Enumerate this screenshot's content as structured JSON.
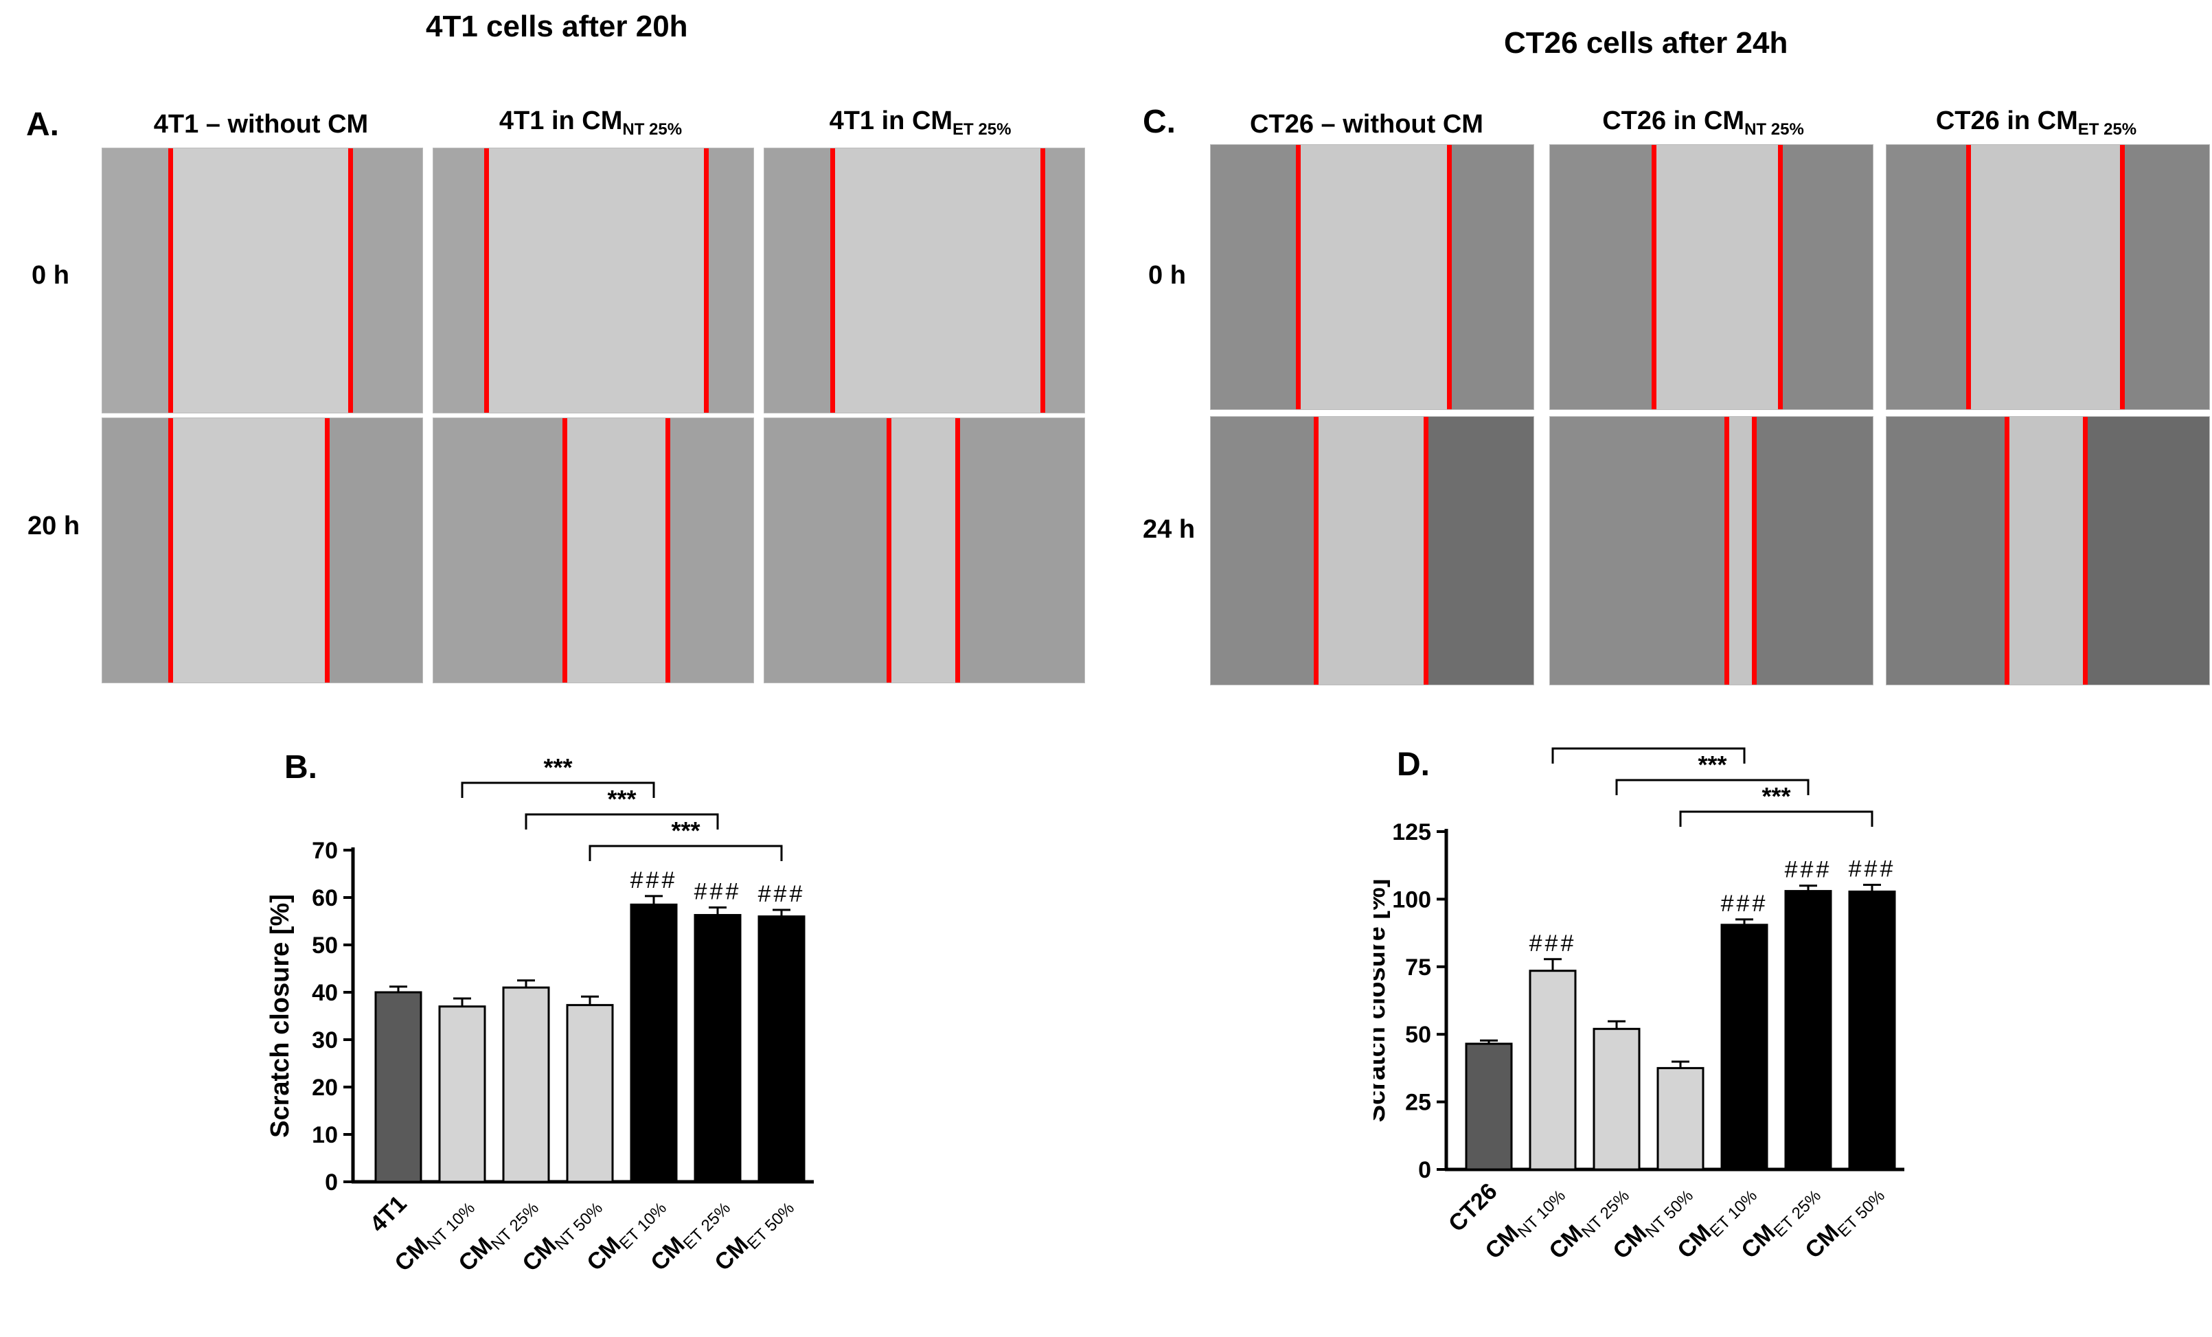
{
  "titles": {
    "left": "4T1 cells after 20h",
    "right": "CT26 cells after 24h"
  },
  "panels": {
    "A": "A.",
    "B": "B.",
    "C": "C.",
    "D": "D."
  },
  "micrographs_left": {
    "columns": [
      {
        "main": "4T1 – without CM",
        "sub": ""
      },
      {
        "main": "4T1 in CM",
        "sub": "NT 25%"
      },
      {
        "main": "4T1 in CM",
        "sub": "ET 25%"
      }
    ],
    "rows": [
      "0 h",
      "20 h"
    ]
  },
  "micrographs_right": {
    "columns": [
      {
        "main": "CT26 – without CM",
        "sub": ""
      },
      {
        "main": "CT26 in CM",
        "sub": "NT 25%"
      },
      {
        "main": "CT26 in CM",
        "sub": "ET 25%"
      }
    ],
    "rows": [
      "0 h",
      "24 h"
    ]
  },
  "colors": {
    "dark_gray": "#5a5a5a",
    "light_gray": "#d4d4d4",
    "black": "#000000",
    "scratch_line": "#ff0000"
  },
  "chart_data": [
    {
      "type": "bar",
      "ylabel": "Scratch closure [%]",
      "ylim": [
        0,
        70
      ],
      "yticks": [
        0,
        10,
        20,
        30,
        40,
        50,
        60,
        70
      ],
      "categories": [
        {
          "base": "4T1",
          "sub": ""
        },
        {
          "base": "CM",
          "sub": "NT 10%"
        },
        {
          "base": "CM",
          "sub": "NT 25%"
        },
        {
          "base": "CM",
          "sub": "NT 50%"
        },
        {
          "base": "CM",
          "sub": "ET 10%"
        },
        {
          "base": "CM",
          "sub": "ET 25%"
        },
        {
          "base": "CM",
          "sub": "ET 50%"
        }
      ],
      "values": [
        40,
        37,
        41,
        37.3,
        58.5,
        56.3,
        56
      ],
      "errors": [
        1.2,
        1.7,
        1.5,
        1.8,
        1.8,
        1.6,
        1.4
      ],
      "bar_colors": [
        "dark",
        "light",
        "light",
        "light",
        "black",
        "black",
        "black"
      ],
      "annotations": [
        "",
        "",
        "",
        "",
        "###",
        "###",
        "###"
      ],
      "significance": [
        {
          "from": 1,
          "to": 4,
          "label": "***"
        },
        {
          "from": 2,
          "to": 5,
          "label": "***"
        },
        {
          "from": 3,
          "to": 6,
          "label": "***"
        }
      ]
    },
    {
      "type": "bar",
      "ylabel": "Scratch closure [%]",
      "ylim": [
        0,
        125
      ],
      "yticks": [
        0,
        25,
        50,
        75,
        100,
        125
      ],
      "categories": [
        {
          "base": "CT26",
          "sub": ""
        },
        {
          "base": "CM",
          "sub": "NT 10%"
        },
        {
          "base": "CM",
          "sub": "NT 25%"
        },
        {
          "base": "CM",
          "sub": "NT 50%"
        },
        {
          "base": "CM",
          "sub": "ET 10%"
        },
        {
          "base": "CM",
          "sub": "ET 25%"
        },
        {
          "base": "CM",
          "sub": "ET 50%"
        }
      ],
      "values": [
        46.5,
        73.5,
        52,
        37.5,
        90.5,
        103,
        102.8
      ],
      "errors": [
        1.2,
        4.3,
        2.8,
        2.4,
        2,
        2,
        2.5
      ],
      "bar_colors": [
        "dark",
        "light",
        "light",
        "light",
        "black",
        "black",
        "black"
      ],
      "annotations": [
        "",
        "###",
        "",
        "",
        "###",
        "###",
        "###"
      ],
      "significance": [
        {
          "from": 1,
          "to": 4,
          "label": "***"
        },
        {
          "from": 2,
          "to": 5,
          "label": "***"
        },
        {
          "from": 3,
          "to": 6,
          "label": "***"
        }
      ]
    }
  ]
}
